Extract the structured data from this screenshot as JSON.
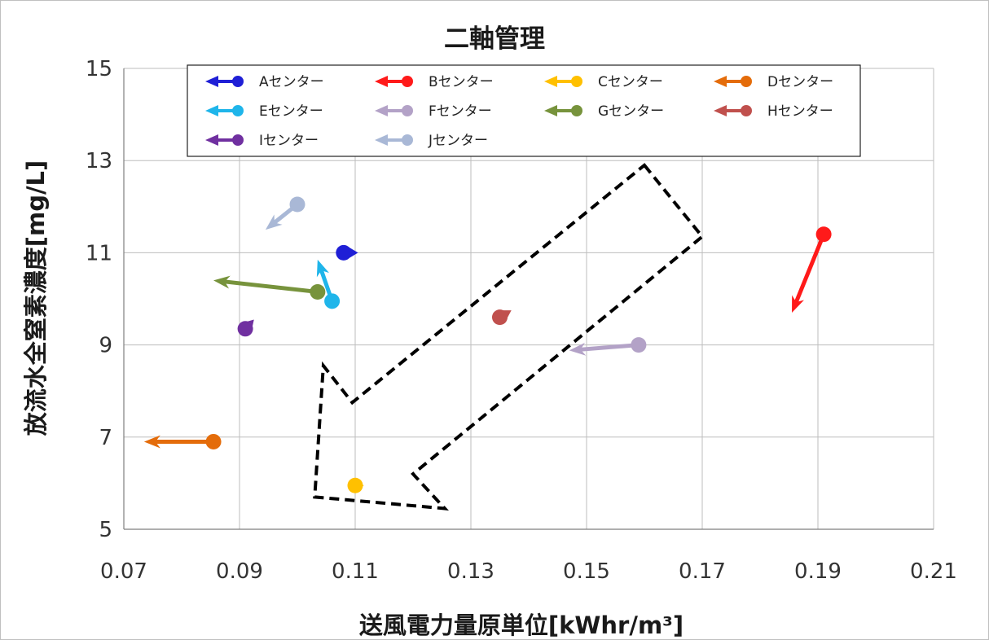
{
  "chart_data": {
    "type": "scatter",
    "title": "二軸管理",
    "xlabel": "送風電力量原単位[kWhr/m³]",
    "ylabel": "放流水全窒素濃度[mg/L]",
    "xlim": [
      0.07,
      0.21
    ],
    "ylim": [
      5,
      15
    ],
    "x_ticks": [
      "0.07",
      "0.09",
      "0.11",
      "0.13",
      "0.15",
      "0.17",
      "0.19",
      "0.21"
    ],
    "y_ticks": [
      "5",
      "7",
      "9",
      "11",
      "13",
      "15"
    ],
    "grid": true,
    "legend_position": "top",
    "series": [
      {
        "name": "Aセンター",
        "color": "#1f1fd6",
        "from": [
          0.108,
          11.0
        ],
        "to": [
          0.1105,
          11.0
        ]
      },
      {
        "name": "Bセンター",
        "color": "#ff1a1a",
        "from": [
          0.191,
          11.4
        ],
        "to": [
          0.1855,
          9.7
        ]
      },
      {
        "name": "Cセンター",
        "color": "#ffc000",
        "from": [
          0.11,
          5.95
        ],
        "to": [
          0.1115,
          5.95
        ]
      },
      {
        "name": "Dセンター",
        "color": "#e46c0a",
        "from": [
          0.0855,
          6.9
        ],
        "to": [
          0.0735,
          6.9
        ]
      },
      {
        "name": "Eセンター",
        "color": "#1fb5ea",
        "from": [
          0.106,
          9.95
        ],
        "to": [
          0.1035,
          10.85
        ]
      },
      {
        "name": "Fセンター",
        "color": "#b3a2c7",
        "from": [
          0.159,
          9.0
        ],
        "to": [
          0.147,
          8.88
        ]
      },
      {
        "name": "Gセンター",
        "color": "#77933c",
        "from": [
          0.1035,
          10.15
        ],
        "to": [
          0.0855,
          10.4
        ]
      },
      {
        "name": "Hセンター",
        "color": "#c0504d",
        "from": [
          0.135,
          9.6
        ],
        "to": [
          0.137,
          9.75
        ]
      },
      {
        "name": "Iセンター",
        "color": "#7030a0",
        "from": [
          0.091,
          9.35
        ],
        "to": [
          0.0925,
          9.55
        ]
      },
      {
        "name": "Jセンター",
        "color": "#a9b8d6",
        "from": [
          0.1,
          12.05
        ],
        "to": [
          0.0945,
          11.5
        ]
      }
    ],
    "annotation": {
      "type": "dashed-arrow",
      "points": [
        [
          0.16,
          12.9
        ],
        [
          0.17,
          11.35
        ],
        [
          0.12,
          6.2
        ],
        [
          0.1255,
          5.45
        ],
        [
          0.103,
          5.7
        ],
        [
          0.1045,
          8.55
        ],
        [
          0.1095,
          7.75
        ]
      ]
    }
  }
}
